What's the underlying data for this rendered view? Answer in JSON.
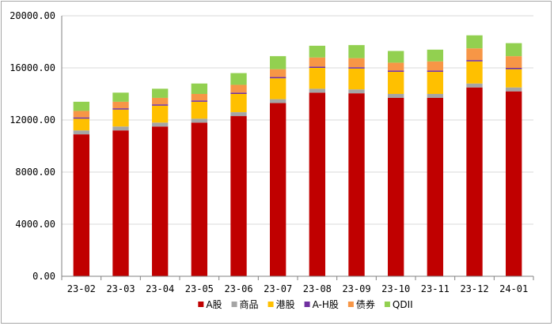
{
  "chart_data": {
    "type": "bar",
    "stacked": true,
    "title": "",
    "xlabel": "",
    "ylabel": "",
    "ylim": [
      0,
      20000
    ],
    "yticks": [
      "0.00",
      "4000.00",
      "8000.00",
      "12000.00",
      "16000.00",
      "20000.00"
    ],
    "grid": true,
    "legend_position": "bottom",
    "categories": [
      "23-02",
      "23-03",
      "23-04",
      "23-05",
      "23-06",
      "23-07",
      "23-08",
      "23-09",
      "23-10",
      "23-11",
      "23-12",
      "24-01"
    ],
    "series": [
      {
        "name": "A股",
        "color": "#c00000",
        "values": [
          10900,
          11200,
          11500,
          11800,
          12300,
          13300,
          14100,
          14050,
          13700,
          13700,
          14500,
          14200
        ]
      },
      {
        "name": "商品",
        "color": "#a5a5a5",
        "values": [
          300,
          300,
          300,
          300,
          300,
          300,
          300,
          300,
          300,
          300,
          300,
          300
        ]
      },
      {
        "name": "港股",
        "color": "#ffc000",
        "values": [
          900,
          1300,
          1300,
          1300,
          1400,
          1600,
          1600,
          1600,
          1700,
          1700,
          1700,
          1400
        ]
      },
      {
        "name": "A-H股",
        "color": "#7030a0",
        "values": [
          100,
          100,
          100,
          100,
          100,
          100,
          100,
          100,
          100,
          100,
          100,
          100
        ]
      },
      {
        "name": "债券",
        "color": "#f79646",
        "values": [
          500,
          500,
          500,
          500,
          600,
          600,
          700,
          700,
          600,
          700,
          900,
          900
        ]
      },
      {
        "name": "QDII",
        "color": "#92d050",
        "values": [
          700,
          700,
          700,
          800,
          900,
          1000,
          900,
          1000,
          900,
          900,
          1000,
          1000
        ]
      }
    ]
  }
}
